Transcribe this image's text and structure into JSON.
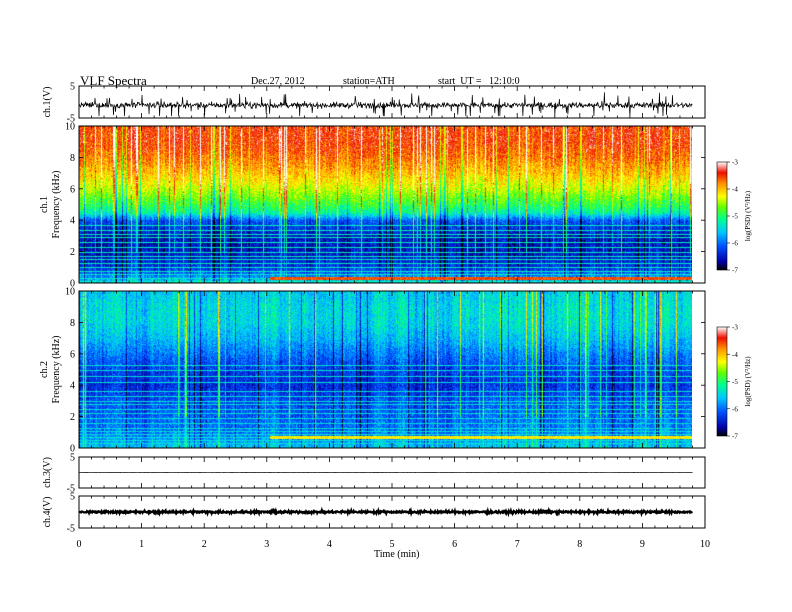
{
  "header": {
    "title": "VLF Spectra",
    "date": "Dec.27, 2012",
    "station": "station=ATH",
    "start": "start  UT =   12:10:0"
  },
  "chart_data": [
    {
      "type": "line",
      "panel": "ch1-waveform",
      "ylabel": "ch.1(V)",
      "ylim": [
        -5,
        5
      ],
      "yticks": [
        "-5",
        "5"
      ],
      "xlim": [
        0,
        10
      ],
      "x_end": 9.8,
      "baseline": -1.0,
      "noise_amplitude": 0.9,
      "color": "#000000"
    },
    {
      "type": "heatmap",
      "panel": "ch1-spectrogram",
      "ylabel": "Frequency (kHz)",
      "channel_label": "ch.1",
      "ylim": [
        0,
        10
      ],
      "yticks": [
        "0",
        "2",
        "4",
        "6",
        "8",
        "10"
      ],
      "xlim": [
        0,
        10
      ],
      "x_end": 9.8,
      "colorbar": {
        "label": "log(PSD) (V²/Hz)",
        "range": [
          -7,
          -3
        ],
        "ticks": [
          "-3",
          "-4",
          "-5",
          "-6",
          "-7"
        ]
      },
      "profile_khz": [
        0,
        0.5,
        1,
        2,
        3,
        4,
        4.5,
        5,
        6,
        7,
        8,
        9,
        10
      ],
      "profile_logpsd": [
        -5.4,
        -5.9,
        -6.3,
        -6.5,
        -6.5,
        -6.1,
        -5.2,
        -4.9,
        -4.4,
        -4.0,
        -3.7,
        -3.5,
        -3.5
      ],
      "line_khz": [
        0.15,
        0.35,
        0.55,
        0.75,
        1.0,
        1.25,
        1.5,
        1.75,
        2.0,
        2.3,
        2.6,
        2.9,
        3.1,
        3.4,
        3.7
      ],
      "line_logpsd": -5.3,
      "bright_band": {
        "khz": [
          0.2,
          0.4
        ],
        "logpsd": -3.6,
        "x_from": 3.05
      }
    },
    {
      "type": "heatmap",
      "panel": "ch2-spectrogram",
      "ylabel": "Frequency (kHz)",
      "channel_label": "ch.2",
      "ylim": [
        0,
        10
      ],
      "yticks": [
        "0",
        "2",
        "4",
        "6",
        "8",
        "10"
      ],
      "xlim": [
        0,
        10
      ],
      "x_end": 9.8,
      "colorbar": {
        "label": "log(PSD) (V²/Hz)",
        "range": [
          -7,
          -3
        ],
        "ticks": [
          "-3",
          "-4",
          "-5",
          "-6",
          "-7"
        ]
      },
      "profile_khz": [
        0,
        0.5,
        1,
        2,
        3,
        4,
        5,
        6,
        7,
        8,
        9,
        10
      ],
      "profile_logpsd": [
        -5.5,
        -5.7,
        -5.9,
        -6.0,
        -6.1,
        -6.3,
        -6.2,
        -5.9,
        -5.6,
        -5.4,
        -5.4,
        -5.5
      ],
      "line_khz": [
        0.3,
        0.5,
        0.7,
        0.9,
        1.1,
        1.3,
        1.6,
        1.9,
        2.2,
        2.5,
        2.8,
        3.0,
        3.3,
        3.6,
        4.2,
        4.6,
        5.0,
        5.3
      ],
      "line_logpsd": -5.4,
      "bright_band": {
        "khz": [
          0.6,
          0.8
        ],
        "logpsd": -4.2,
        "x_from": 3.05
      }
    },
    {
      "type": "line",
      "panel": "ch3-waveform",
      "ylabel": "ch.3(V)",
      "ylim": [
        -5,
        5
      ],
      "yticks": [
        "-5",
        "5"
      ],
      "xlim": [
        0,
        10
      ],
      "x_end": 9.8,
      "baseline": 0.0,
      "noise_amplitude": 0.04,
      "color": "#000000"
    },
    {
      "type": "line",
      "panel": "ch4-waveform",
      "ylabel": "ch.4(V)",
      "ylim": [
        -5,
        5
      ],
      "yticks": [
        "-5",
        "5"
      ],
      "xlim": [
        0,
        10
      ],
      "x_end": 9.8,
      "baseline": 0.0,
      "noise_amplitude": 0.35,
      "color": "#000000"
    }
  ],
  "xaxis": {
    "label": "Time (min)",
    "ticks": [
      "0",
      "1",
      "2",
      "3",
      "4",
      "5",
      "6",
      "7",
      "8",
      "9",
      "10"
    ]
  }
}
